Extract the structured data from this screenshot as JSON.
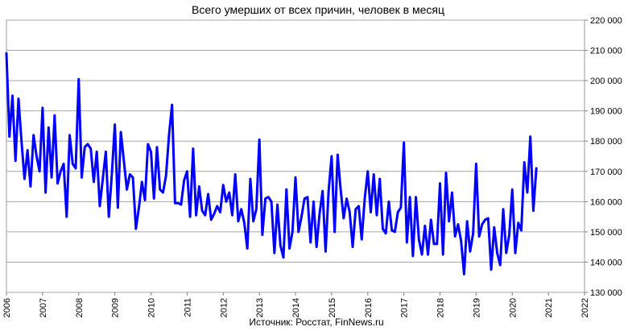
{
  "chart_data": {
    "type": "line",
    "title": "Всего умерших от всех причин, человек в месяц",
    "source": "Источник: Росстат, FinNews.ru",
    "xlabel": "",
    "ylabel": "",
    "xlim": [
      2006,
      2022
    ],
    "ylim": [
      130000,
      220000
    ],
    "x_ticks": [
      "2006",
      "2007",
      "2008",
      "2009",
      "2010",
      "2011",
      "2012",
      "2013",
      "2014",
      "2015",
      "2016",
      "2017",
      "2018",
      "2019",
      "2020",
      "2021",
      "2022"
    ],
    "y_ticks": [
      "130 000",
      "140 000",
      "150 000",
      "160 000",
      "170 000",
      "180 000",
      "190 000",
      "200 000",
      "210 000",
      "220 000"
    ],
    "grid": "horizontal",
    "legend": "none",
    "series": [
      {
        "color": "#0000ff",
        "start_year": 2006,
        "interval": "month",
        "values": [
          209000,
          181500,
          195000,
          173500,
          194000,
          180000,
          167500,
          177000,
          165000,
          182000,
          175000,
          170000,
          191000,
          163000,
          184500,
          168000,
          188500,
          166000,
          170000,
          172500,
          155000,
          182000,
          172500,
          171000,
          200500,
          168000,
          178000,
          179000,
          177500,
          166500,
          176500,
          158500,
          167500,
          176500,
          155000,
          169000,
          185500,
          158000,
          183000,
          173500,
          164000,
          169000,
          168000,
          151000,
          158000,
          166500,
          160500,
          179000,
          176500,
          161000,
          178000,
          164000,
          163000,
          168500,
          182000,
          192000,
          159500,
          159500,
          159000,
          167000,
          170000,
          155000,
          177500,
          155500,
          165000,
          157000,
          155500,
          162500,
          154000,
          156000,
          158500,
          156500,
          165500,
          160000,
          163000,
          155500,
          169000,
          153500,
          157500,
          153000,
          144500,
          167500,
          153500,
          157500,
          180500,
          149000,
          161000,
          161500,
          160000,
          143000,
          159000,
          145500,
          141500,
          164000,
          144500,
          150000,
          168000,
          150000,
          155000,
          161000,
          161500,
          146500,
          160000,
          145000,
          156000,
          163500,
          143500,
          163500,
          175000,
          150000,
          175500,
          164000,
          154500,
          161000,
          156500,
          145000,
          157500,
          158500,
          147500,
          161000,
          170000,
          156500,
          169000,
          155500,
          167500,
          151000,
          149500,
          160000,
          150500,
          150000,
          156500,
          158000,
          179500,
          146500,
          161500,
          142000,
          161500,
          147500,
          142500,
          152000,
          142500,
          154000,
          146000,
          146000,
          166000,
          142500,
          169500,
          153500,
          163000,
          148500,
          152500,
          147000,
          136000,
          153500,
          143500,
          149500,
          172500,
          148500,
          152500,
          154000,
          154500,
          137500,
          151500,
          143000,
          139000,
          157500,
          143000,
          149000,
          164000,
          143000,
          153000,
          150500,
          173000,
          163000,
          181500,
          157000,
          171000
        ]
      }
    ]
  }
}
